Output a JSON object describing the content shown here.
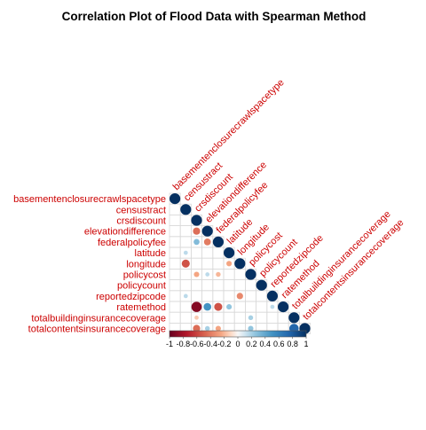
{
  "chart_data": {
    "type": "heatmap",
    "title": "Correlation Plot of Flood Data with Spearman Method",
    "variables": [
      "basementenclosurecrawlspacetype",
      "censustract",
      "crsdiscount",
      "elevationdifference",
      "federalpolicyfee",
      "latitude",
      "longitude",
      "policycost",
      "policycount",
      "reportedzipcode",
      "ratemethod",
      "totalbuildinginsurancecoverage",
      "totalcontentsinsurancecoverage"
    ],
    "matrix": [
      [
        1,
        0,
        0,
        0,
        0,
        0,
        0,
        0,
        0,
        0,
        0,
        0,
        0
      ],
      [
        0,
        1,
        0,
        0,
        0,
        0,
        0,
        0,
        0,
        0,
        0,
        0,
        0
      ],
      [
        0,
        0,
        1,
        0,
        0,
        0,
        0,
        0,
        0,
        0,
        0,
        0,
        0
      ],
      [
        0,
        0,
        -0.45,
        1,
        0,
        0,
        0,
        0,
        0,
        0,
        0,
        0,
        0
      ],
      [
        0,
        0,
        0.3,
        -0.4,
        1,
        0,
        0,
        0,
        0,
        0,
        0,
        0,
        0
      ],
      [
        0,
        0.15,
        0,
        0,
        0,
        1,
        0,
        0,
        0,
        0,
        0,
        0,
        0
      ],
      [
        0,
        -0.55,
        0,
        0,
        0,
        -0.25,
        1,
        0,
        0,
        0,
        0,
        0,
        0
      ],
      [
        0,
        0,
        -0.25,
        0.15,
        -0.2,
        0,
        0,
        1,
        0,
        0,
        0,
        0,
        0
      ],
      [
        0,
        0,
        0,
        0,
        0,
        0,
        0,
        0,
        1,
        0,
        0,
        0,
        0
      ],
      [
        0,
        0.15,
        0,
        0,
        0,
        0,
        -0.35,
        0,
        0,
        1,
        0,
        0,
        0
      ],
      [
        0,
        0,
        -0.9,
        0.5,
        -0.55,
        0.25,
        0,
        0,
        0,
        0.15,
        1,
        0,
        0
      ],
      [
        0,
        0,
        -0.15,
        0,
        0,
        0,
        0,
        0.2,
        0,
        0,
        0,
        1,
        0
      ],
      [
        0,
        0,
        -0.45,
        0.2,
        -0.25,
        0,
        0,
        0.25,
        0,
        0,
        0,
        0.75,
        1
      ]
    ],
    "colorbar": {
      "min": -1,
      "max": 1,
      "ticks": [
        "-1",
        "-0.8",
        "-0.6",
        "-0.4",
        "-0.2",
        "0",
        "0.2",
        "0.4",
        "0.6",
        "0.8",
        "1"
      ],
      "low_color": "#67001f",
      "mid_color": "#f7f7f7",
      "high_color": "#053061"
    },
    "label_color": "#cc0000",
    "shape": "circle",
    "layout": "lower-triangle"
  }
}
